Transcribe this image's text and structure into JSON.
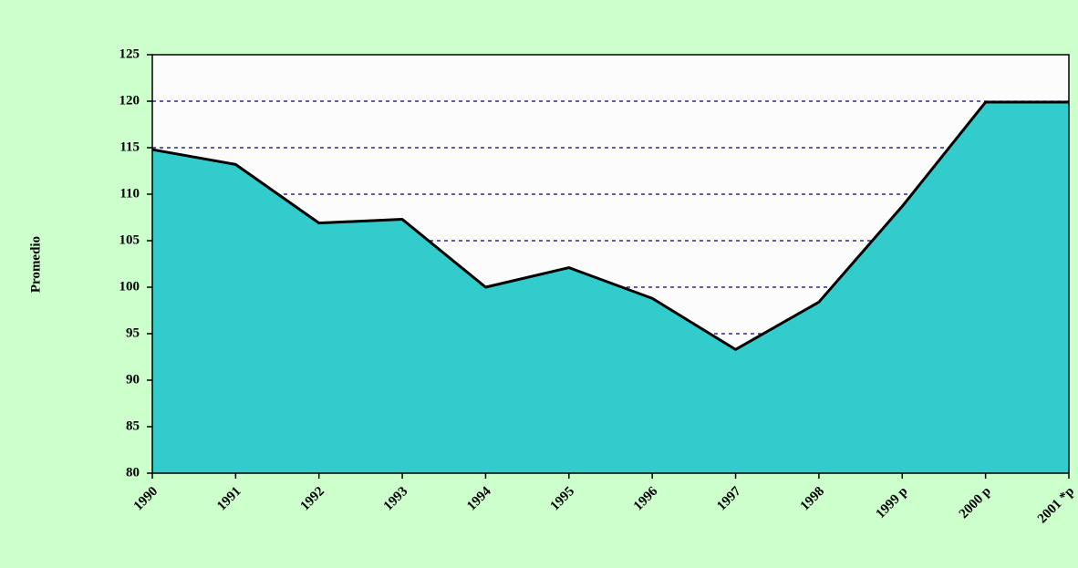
{
  "chart_data": {
    "type": "area",
    "y_label": "Promedio",
    "categories": [
      "1990",
      "1991",
      "1992",
      "1993",
      "1994",
      "1995",
      "1996",
      "1997",
      "1998",
      "1999 p",
      "2000 p",
      "2001 *p"
    ],
    "values": [
      114.8,
      113.2,
      106.9,
      107.3,
      100,
      102.1,
      98.8,
      93.3,
      98.4,
      108.7,
      119.9,
      119.9
    ],
    "color": "#33cccc",
    "ylim": [
      80,
      125
    ],
    "yticks": [
      80,
      85,
      90,
      95,
      100,
      105,
      110,
      115,
      120,
      125
    ],
    "grid": true
  }
}
